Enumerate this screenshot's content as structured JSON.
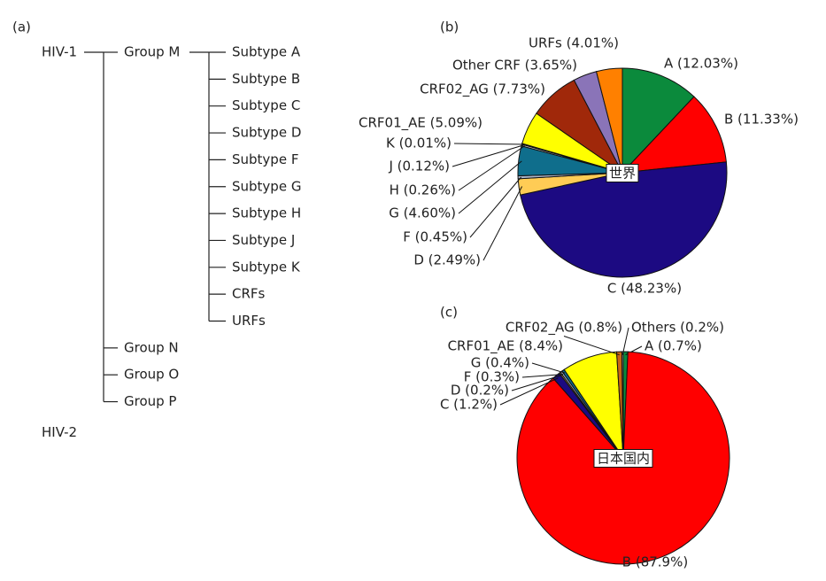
{
  "panel_labels": [
    "(a)",
    "(b)",
    "(c)"
  ],
  "tree": {
    "nodes": [
      {
        "label": "HIV-1",
        "children": [
          {
            "label": "Group M",
            "children": [
              {
                "label": "Subtype A"
              },
              {
                "label": "Subtype B"
              },
              {
                "label": "Subtype C"
              },
              {
                "label": "Subtype D"
              },
              {
                "label": "Subtype F"
              },
              {
                "label": "Subtype G"
              },
              {
                "label": "Subtype H"
              },
              {
                "label": "Subtype J"
              },
              {
                "label": "Subtype K"
              },
              {
                "label": "CRFs"
              },
              {
                "label": "URFs"
              }
            ]
          },
          {
            "label": "Group N"
          },
          {
            "label": "Group O"
          },
          {
            "label": "Group P"
          }
        ]
      },
      {
        "label": "HIV-2"
      }
    ]
  },
  "chart_data": [
    {
      "type": "pie",
      "center_label": "世界",
      "values": [
        12.03,
        11.33,
        48.23,
        2.49,
        0.45,
        4.6,
        0.26,
        0.12,
        0.01,
        5.09,
        7.73,
        3.65,
        4.01
      ],
      "value_labels": [
        "A (12.03%)",
        "B (11.33%)",
        "C (48.23%)",
        "D (2.49%)",
        "F (0.45%)",
        "G (4.60%)",
        "H (0.26%)",
        "J (0.12%)",
        "K (0.01%)",
        "CRF01_AE (5.09%)",
        "CRF02_AG (7.73%)",
        "Other CRF (3.65%)",
        "URFs (4.01%)"
      ],
      "colors": [
        "#0b8a3c",
        "#ff0000",
        "#1c0a82",
        "#ffcc55",
        "#a8b4c8",
        "#0f6e8c",
        "#c8c8c8",
        "#808080",
        "#000000",
        "#ffff00",
        "#a0280a",
        "#8a74b8",
        "#ff8000"
      ]
    },
    {
      "type": "pie",
      "center_label": "日本国内",
      "values": [
        0.7,
        87.9,
        1.2,
        0.2,
        0.3,
        0.4,
        8.4,
        0.8,
        0.2
      ],
      "value_labels": [
        "A (0.7%)",
        "B (87.9%)",
        "C (1.2%)",
        "D (0.2%)",
        "F (0.3%)",
        "G (0.4%)",
        "CRF01_AE (8.4%)",
        "CRF02_AG (0.8%)",
        "Others (0.2%)"
      ],
      "colors": [
        "#0b8a3c",
        "#ff0000",
        "#1c0a82",
        "#ffcc55",
        "#a8b4c8",
        "#0f6e8c",
        "#ffff00",
        "#c86414",
        "#d8d8d8"
      ]
    }
  ]
}
